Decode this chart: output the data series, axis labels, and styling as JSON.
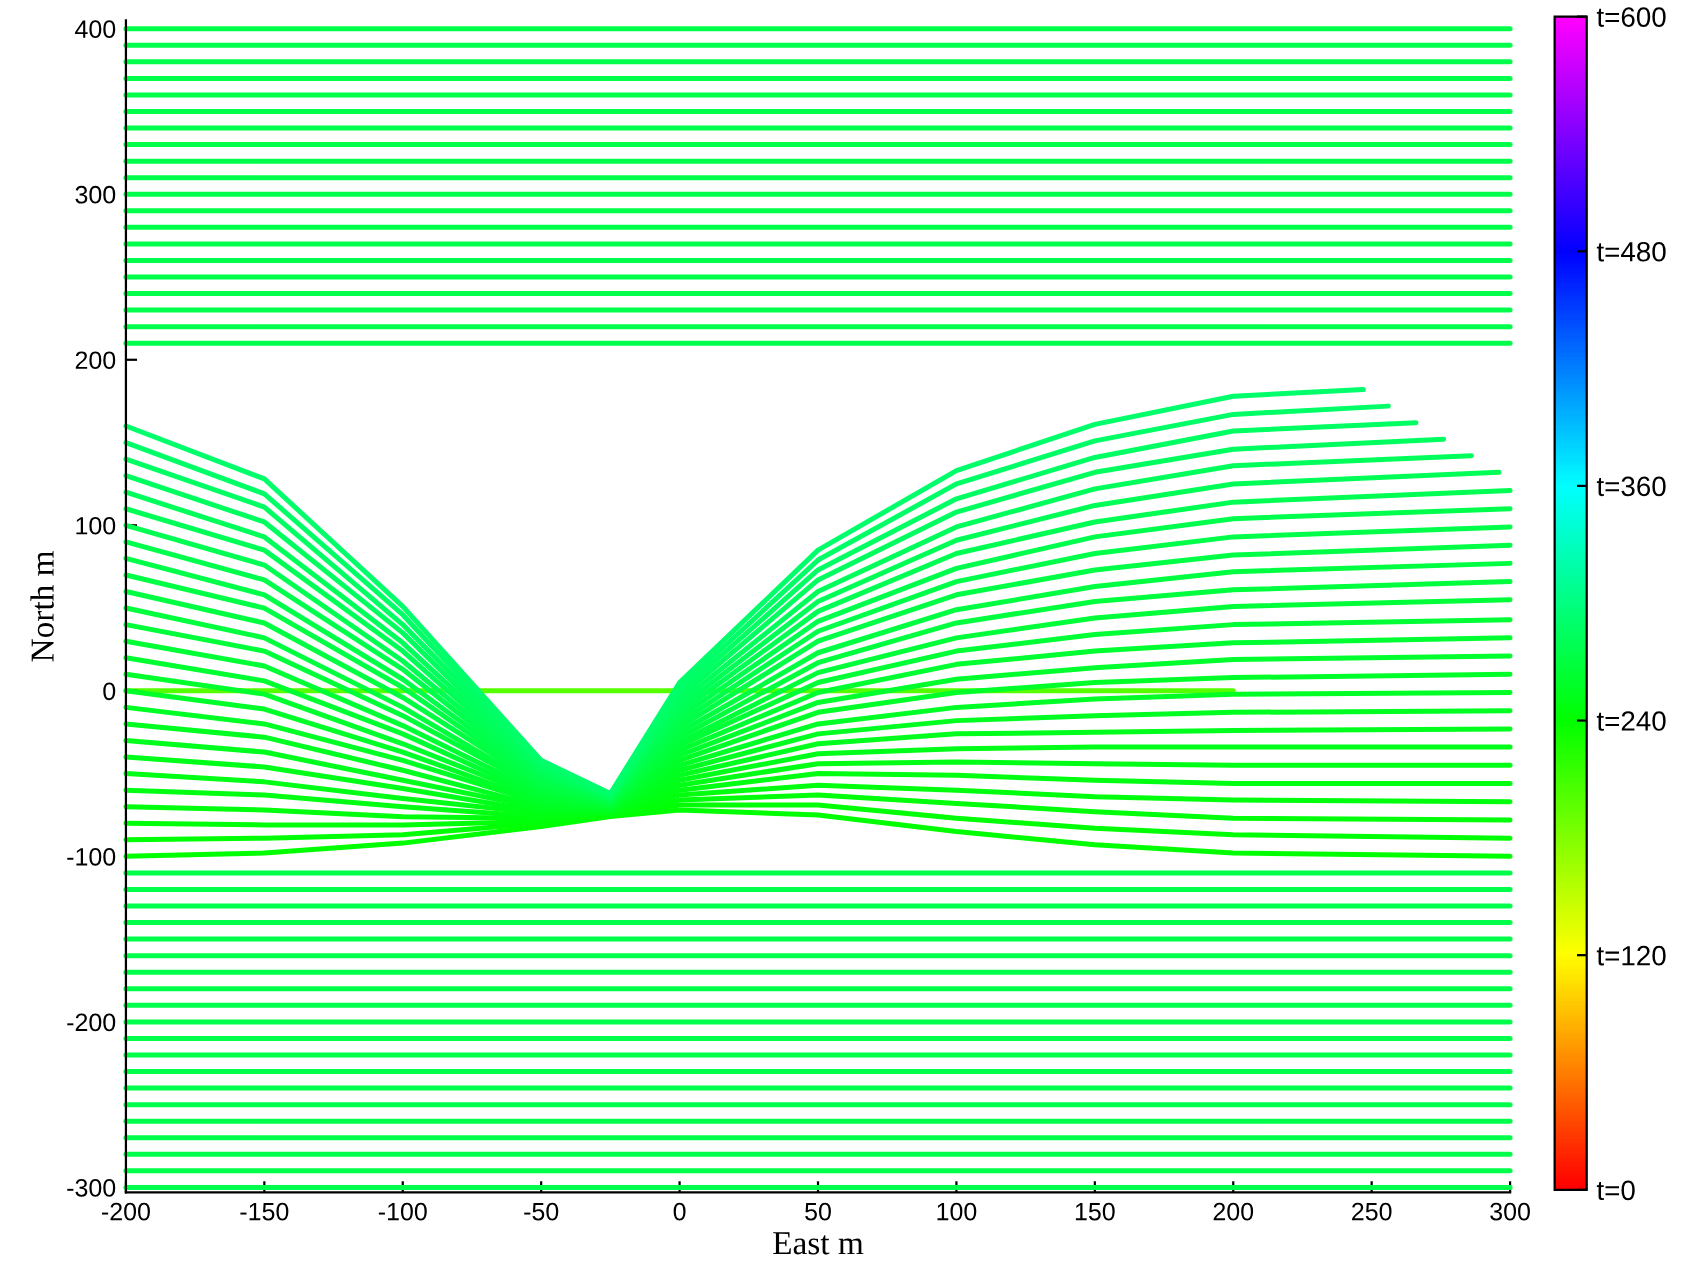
{
  "chart_data": {
    "type": "line",
    "xlabel": "East m",
    "ylabel": "North m",
    "xlim": [
      -200,
      300
    ],
    "ylim": [
      -303,
      405
    ],
    "xticks": [
      -200,
      -150,
      -100,
      -50,
      0,
      50,
      100,
      150,
      200,
      250,
      300
    ],
    "yticks": [
      -300,
      -200,
      -100,
      0,
      100,
      200,
      300,
      400
    ],
    "clim": [
      0,
      600
    ],
    "cticks": [
      {
        "value": 0,
        "label": "t=0"
      },
      {
        "value": 120,
        "label": "t=120"
      },
      {
        "value": 240,
        "label": "t=240"
      },
      {
        "value": 360,
        "label": "t=360"
      },
      {
        "value": 480,
        "label": "t=480"
      },
      {
        "value": 600,
        "label": "t=600"
      }
    ],
    "x": [
      -200,
      -150,
      -100,
      -50,
      -25,
      0,
      50,
      100,
      150,
      200,
      300
    ],
    "series": [
      {
        "x": [
          -200,
          200
        ],
        "values": [
          0,
          0
        ],
        "color": "#55ff00"
      },
      {
        "x": [
          -200,
          300
        ],
        "values": [
          210,
          210
        ],
        "color": "#00ff4a"
      },
      {
        "x": [
          -200,
          300
        ],
        "values": [
          220,
          220
        ],
        "color": "#00ff4a"
      },
      {
        "x": [
          -200,
          300
        ],
        "values": [
          230,
          230
        ],
        "color": "#00ff4a"
      },
      {
        "x": [
          -200,
          300
        ],
        "values": [
          240,
          240
        ],
        "color": "#00ff4a"
      },
      {
        "x": [
          -200,
          300
        ],
        "values": [
          250,
          250
        ],
        "color": "#00ff4a"
      },
      {
        "x": [
          -200,
          300
        ],
        "values": [
          260,
          260
        ],
        "color": "#00ff4a"
      },
      {
        "x": [
          -200,
          300
        ],
        "values": [
          270,
          270
        ],
        "color": "#00ff4a"
      },
      {
        "x": [
          -200,
          300
        ],
        "values": [
          280,
          280
        ],
        "color": "#00ff4a"
      },
      {
        "x": [
          -200,
          300
        ],
        "values": [
          290,
          290
        ],
        "color": "#00ff4a"
      },
      {
        "x": [
          -200,
          300
        ],
        "values": [
          300,
          300
        ],
        "color": "#00ff4a"
      },
      {
        "x": [
          -200,
          300
        ],
        "values": [
          310,
          310
        ],
        "color": "#00ff4a"
      },
      {
        "x": [
          -200,
          300
        ],
        "values": [
          320,
          320
        ],
        "color": "#00ff4a"
      },
      {
        "x": [
          -200,
          300
        ],
        "values": [
          330,
          330
        ],
        "color": "#00ff4a"
      },
      {
        "x": [
          -200,
          300
        ],
        "values": [
          340,
          340
        ],
        "color": "#00ff4a"
      },
      {
        "x": [
          -200,
          300
        ],
        "values": [
          350,
          350
        ],
        "color": "#00ff4a"
      },
      {
        "x": [
          -200,
          300
        ],
        "values": [
          360,
          360
        ],
        "color": "#00ff4a"
      },
      {
        "x": [
          -200,
          300
        ],
        "values": [
          370,
          370
        ],
        "color": "#00ff4a"
      },
      {
        "x": [
          -200,
          300
        ],
        "values": [
          380,
          380
        ],
        "color": "#00ff4a"
      },
      {
        "x": [
          -200,
          300
        ],
        "values": [
          390,
          390
        ],
        "color": "#00ff4a"
      },
      {
        "x": [
          -200,
          300
        ],
        "values": [
          400,
          400
        ],
        "color": "#00ff4a"
      },
      {
        "x": [
          -200,
          300
        ],
        "values": [
          -300,
          -300
        ],
        "color": "#00ff4a"
      },
      {
        "x": [
          -200,
          300
        ],
        "values": [
          -290,
          -290
        ],
        "color": "#00ff4a"
      },
      {
        "x": [
          -200,
          300
        ],
        "values": [
          -280,
          -280
        ],
        "color": "#00ff4a"
      },
      {
        "x": [
          -200,
          300
        ],
        "values": [
          -270,
          -270
        ],
        "color": "#00ff4a"
      },
      {
        "x": [
          -200,
          300
        ],
        "values": [
          -260,
          -260
        ],
        "color": "#00ff4a"
      },
      {
        "x": [
          -200,
          300
        ],
        "values": [
          -250,
          -250
        ],
        "color": "#00ff4a"
      },
      {
        "x": [
          -200,
          300
        ],
        "values": [
          -240,
          -240
        ],
        "color": "#00ff4a"
      },
      {
        "x": [
          -200,
          300
        ],
        "values": [
          -230,
          -230
        ],
        "color": "#00ff4a"
      },
      {
        "x": [
          -200,
          300
        ],
        "values": [
          -220,
          -220
        ],
        "color": "#00ff4a"
      },
      {
        "x": [
          -200,
          300
        ],
        "values": [
          -210,
          -210
        ],
        "color": "#00ff4a"
      },
      {
        "x": [
          -200,
          300
        ],
        "values": [
          -200,
          -200
        ],
        "color": "#00ff4a"
      },
      {
        "x": [
          -200,
          300
        ],
        "values": [
          -190,
          -190
        ],
        "color": "#00ff4a"
      },
      {
        "x": [
          -200,
          300
        ],
        "values": [
          -180,
          -180
        ],
        "color": "#00ff4a"
      },
      {
        "x": [
          -200,
          300
        ],
        "values": [
          -170,
          -170
        ],
        "color": "#00ff4a"
      },
      {
        "x": [
          -200,
          300
        ],
        "values": [
          -160,
          -160
        ],
        "color": "#00ff4a"
      },
      {
        "x": [
          -200,
          300
        ],
        "values": [
          -150,
          -150
        ],
        "color": "#00ff4a"
      },
      {
        "x": [
          -200,
          300
        ],
        "values": [
          -140,
          -140
        ],
        "color": "#00ff4a"
      },
      {
        "x": [
          -200,
          300
        ],
        "values": [
          -130,
          -130
        ],
        "color": "#00ff4a"
      },
      {
        "x": [
          -200,
          300
        ],
        "values": [
          -120,
          -120
        ],
        "color": "#00ff4a"
      },
      {
        "x": [
          -200,
          300
        ],
        "values": [
          -110,
          -110
        ],
        "color": "#00ff4a"
      },
      {
        "values": [
          -100,
          -98,
          -92,
          -82,
          -76,
          -72,
          -75,
          -85,
          -93,
          -98,
          -100
        ],
        "color": "#00ff00"
      },
      {
        "values": [
          -90,
          -89,
          -87,
          -80,
          -75,
          -69,
          -69,
          -77,
          -83,
          -87,
          -89
        ],
        "color": "#00ff04"
      },
      {
        "values": [
          -80,
          -81,
          -81,
          -79,
          -75,
          -66,
          -63,
          -68,
          -73,
          -77,
          -78
        ],
        "color": "#00ff08"
      },
      {
        "values": [
          -70,
          -72,
          -76,
          -77,
          -74,
          -63,
          -57,
          -60,
          -64,
          -66,
          -67
        ],
        "color": "#00ff0c"
      },
      {
        "values": [
          -60,
          -63,
          -70,
          -76,
          -74,
          -60,
          -50,
          -51,
          -54,
          -56,
          -56
        ],
        "color": "#00ff10"
      },
      {
        "values": [
          -50,
          -55,
          -65,
          -74,
          -73,
          -57,
          -44,
          -43,
          -44,
          -45,
          -45
        ],
        "color": "#00ff14"
      },
      {
        "values": [
          -40,
          -46,
          -59,
          -73,
          -73,
          -54,
          -38,
          -35,
          -34,
          -34,
          -34
        ],
        "color": "#00ff18"
      },
      {
        "values": [
          -30,
          -37,
          -54,
          -71,
          -72,
          -51,
          -32,
          -26,
          -25,
          -24,
          -23
        ],
        "color": "#00ff1c"
      },
      {
        "values": [
          -20,
          -28,
          -48,
          -70,
          -72,
          -48,
          -26,
          -18,
          -15,
          -13,
          -12
        ],
        "color": "#00ff20"
      },
      {
        "values": [
          -10,
          -20,
          -42,
          -68,
          -71,
          -45,
          -20,
          -10,
          -5,
          -2,
          -1
        ],
        "color": "#00ff24"
      },
      {
        "values": [
          0,
          -11,
          -37,
          -67,
          -71,
          -42,
          -13,
          -1,
          5,
          8,
          10
        ],
        "color": "#00ff29"
      },
      {
        "values": [
          10,
          -2,
          -32,
          -65,
          -70,
          -39,
          -7,
          7,
          14,
          19,
          21
        ],
        "color": "#00ff2d"
      },
      {
        "values": [
          20,
          6,
          -26,
          -64,
          -70,
          -36,
          -1,
          16,
          24,
          29,
          32
        ],
        "color": "#00ff31"
      },
      {
        "values": [
          30,
          15,
          -21,
          -62,
          -69,
          -33,
          5,
          24,
          34,
          40,
          43
        ],
        "color": "#00ff35"
      },
      {
        "values": [
          40,
          24,
          -15,
          -60,
          -68,
          -31,
          11,
          32,
          44,
          51,
          55
        ],
        "color": "#00ff39"
      },
      {
        "values": [
          50,
          32,
          -10,
          -59,
          -68,
          -28,
          17,
          41,
          54,
          61,
          66
        ],
        "color": "#00ff3d"
      },
      {
        "values": [
          60,
          41,
          -4,
          -57,
          -67,
          -25,
          23,
          49,
          63,
          72,
          77
        ],
        "color": "#00ff41"
      },
      {
        "values": [
          70,
          50,
          2,
          -56,
          -67,
          -22,
          30,
          58,
          73,
          82,
          88
        ],
        "color": "#00ff45"
      },
      {
        "values": [
          80,
          58,
          7,
          -54,
          -66,
          -19,
          36,
          66,
          83,
          93,
          99
        ],
        "color": "#00ff49"
      },
      {
        "values": [
          90,
          67,
          13,
          -53,
          -66,
          -16,
          42,
          74,
          93,
          104,
          110
        ],
        "color": "#00ff4d"
      },
      {
        "values": [
          100,
          76,
          18,
          -51,
          -65,
          -13,
          48,
          83,
          102,
          114,
          121
        ],
        "color": "#00ff52"
      },
      {
        "x": [
          -200,
          -150,
          -100,
          -50,
          -25,
          0,
          50,
          100,
          150,
          200,
          296
        ],
        "values": [
          110,
          85,
          24,
          -50,
          -65,
          -10,
          54,
          91,
          112,
          125,
          132
        ],
        "color": "#00ff56"
      },
      {
        "x": [
          -200,
          -150,
          -100,
          -50,
          -25,
          0,
          50,
          100,
          150,
          200,
          286
        ],
        "values": [
          120,
          93,
          29,
          -48,
          -64,
          -7,
          60,
          99,
          122,
          136,
          142
        ],
        "color": "#00ff5a"
      },
      {
        "x": [
          -200,
          -150,
          -100,
          -50,
          -25,
          0,
          50,
          100,
          150,
          200,
          276
        ],
        "values": [
          130,
          102,
          35,
          -47,
          -64,
          -4,
          67,
          108,
          132,
          146,
          152
        ],
        "color": "#00ff5e"
      },
      {
        "x": [
          -200,
          -150,
          -100,
          -50,
          -25,
          0,
          50,
          100,
          150,
          200,
          266
        ],
        "values": [
          140,
          111,
          40,
          -45,
          -63,
          -1,
          73,
          116,
          141,
          157,
          162
        ],
        "color": "#00ff62"
      },
      {
        "x": [
          -200,
          -150,
          -100,
          -50,
          -25,
          0,
          50,
          100,
          150,
          200,
          256
        ],
        "values": [
          150,
          119,
          46,
          -44,
          -63,
          2,
          79,
          125,
          151,
          167,
          172
        ],
        "color": "#00ff66"
      },
      {
        "x": [
          -200,
          -150,
          -100,
          -50,
          -25,
          0,
          50,
          100,
          150,
          200,
          247
        ],
        "values": [
          160,
          128,
          51,
          -42,
          -62,
          5,
          85,
          133,
          161,
          178,
          182
        ],
        "color": "#00ff6a"
      }
    ]
  }
}
